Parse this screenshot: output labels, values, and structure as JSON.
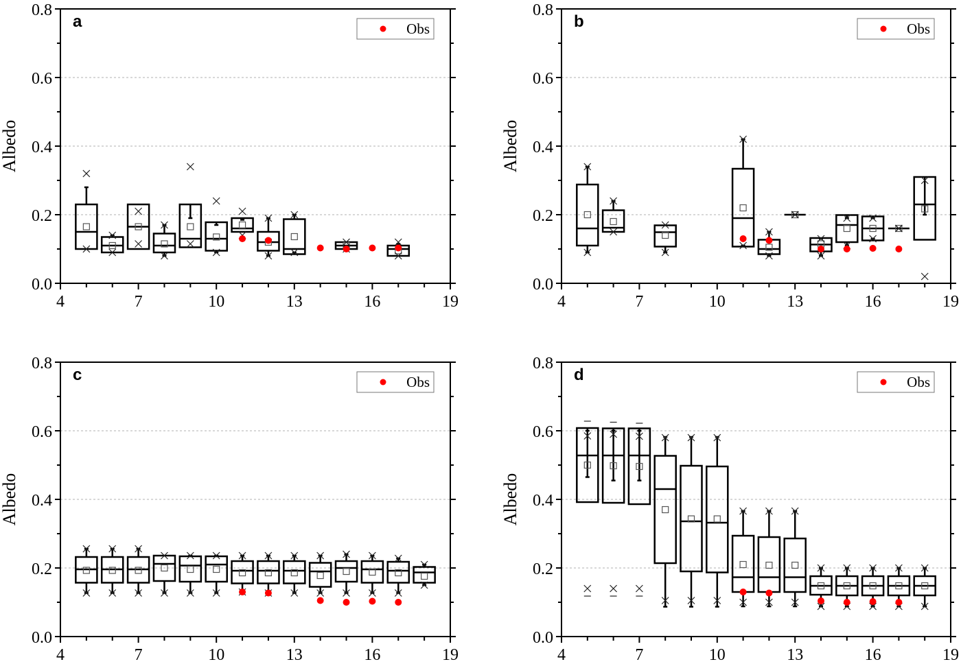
{
  "chart_data": [
    {
      "type": "box",
      "panel_label": "a",
      "ylabel": "Albedo",
      "xlabel": "",
      "xlim": [
        4,
        19
      ],
      "ylim": [
        0,
        0.8
      ],
      "xticks": [
        "4",
        "7",
        "10",
        "13",
        "16",
        "19"
      ],
      "yticks": [
        "0.0",
        "0.2",
        "0.4",
        "0.6",
        "0.8"
      ],
      "grid": "horizontal-dotted",
      "legend": {
        "entries": [
          "Obs"
        ],
        "position": "top-right"
      },
      "boxes": [
        {
          "x": 5,
          "q1": 0.1,
          "median": 0.15,
          "q3": 0.23,
          "mean": 0.165,
          "whisker_low": 0.1,
          "whisker_high": 0.28,
          "max": 0.32,
          "min": 0.1
        },
        {
          "x": 6,
          "q1": 0.09,
          "median": 0.11,
          "q3": 0.135,
          "mean": 0.11,
          "whisker_low": 0.09,
          "whisker_high": 0.14,
          "max": 0.14,
          "min": 0.09
        },
        {
          "x": 7,
          "q1": 0.1,
          "median": 0.165,
          "q3": 0.23,
          "mean": 0.165,
          "whisker_low": 0.1,
          "whisker_high": 0.23,
          "max": 0.21,
          "min": 0.115
        },
        {
          "x": 8,
          "q1": 0.09,
          "median": 0.11,
          "q3": 0.145,
          "mean": 0.115,
          "whisker_low": 0.08,
          "whisker_high": 0.17,
          "max": 0.17,
          "min": 0.08
        },
        {
          "x": 9,
          "q1": 0.105,
          "median": 0.13,
          "q3": 0.23,
          "mean": 0.165,
          "whisker_low": 0.105,
          "whisker_high": 0.19,
          "max": 0.34,
          "min": 0.115
        },
        {
          "x": 10,
          "q1": 0.095,
          "median": 0.13,
          "q3": 0.178,
          "mean": 0.135,
          "whisker_low": 0.09,
          "whisker_high": 0.17,
          "max": 0.24,
          "min": 0.09
        },
        {
          "x": 11,
          "q1": 0.15,
          "median": 0.16,
          "q3": 0.19,
          "mean": 0.17,
          "whisker_low": 0.15,
          "whisker_high": 0.185,
          "max": 0.21,
          "min": 0.14
        },
        {
          "x": 12,
          "q1": 0.095,
          "median": 0.12,
          "q3": 0.15,
          "mean": 0.12,
          "whisker_low": 0.08,
          "whisker_high": 0.19,
          "max": 0.19,
          "min": 0.08
        },
        {
          "x": 13,
          "q1": 0.085,
          "median": 0.1,
          "q3": 0.187,
          "mean": 0.136,
          "whisker_low": 0.09,
          "whisker_high": 0.2,
          "max": 0.2,
          "min": 0.09
        },
        {
          "x": 15,
          "q1": 0.1,
          "median": 0.11,
          "q3": 0.12,
          "mean": 0.11,
          "whisker_low": 0.1,
          "whisker_high": 0.12,
          "max": 0.12,
          "min": 0.1
        },
        {
          "x": 17,
          "q1": 0.08,
          "median": 0.1,
          "q3": 0.11,
          "mean": 0.095,
          "whisker_low": 0.08,
          "whisker_high": 0.115,
          "max": 0.12,
          "min": 0.08
        }
      ],
      "obs": [
        {
          "x": 11,
          "y": 0.13
        },
        {
          "x": 12,
          "y": 0.125
        },
        {
          "x": 14,
          "y": 0.103
        },
        {
          "x": 15,
          "y": 0.1
        },
        {
          "x": 16,
          "y": 0.103
        },
        {
          "x": 17,
          "y": 0.103
        }
      ]
    },
    {
      "type": "box",
      "panel_label": "b",
      "ylabel": "Albedo",
      "xlabel": "",
      "xlim": [
        4,
        19
      ],
      "ylim": [
        0,
        0.8
      ],
      "xticks": [
        "4",
        "7",
        "10",
        "13",
        "16",
        "19"
      ],
      "yticks": [
        "0.0",
        "0.2",
        "0.4",
        "0.6",
        "0.8"
      ],
      "grid": "horizontal-dotted",
      "legend": {
        "entries": [
          "Obs"
        ],
        "position": "top-right"
      },
      "boxes": [
        {
          "x": 5,
          "q1": 0.11,
          "median": 0.16,
          "q3": 0.288,
          "mean": 0.2,
          "whisker_low": 0.09,
          "whisker_high": 0.34,
          "max": 0.34,
          "min": 0.09
        },
        {
          "x": 6,
          "q1": 0.15,
          "median": 0.162,
          "q3": 0.213,
          "mean": 0.18,
          "whisker_low": 0.15,
          "whisker_high": 0.24,
          "max": 0.24,
          "min": 0.15
        },
        {
          "x": 8,
          "q1": 0.107,
          "median": 0.149,
          "q3": 0.169,
          "mean": 0.14,
          "whisker_low": 0.09,
          "whisker_high": 0.169,
          "max": 0.17,
          "min": 0.09
        },
        {
          "x": 11,
          "q1": 0.107,
          "median": 0.19,
          "q3": 0.334,
          "mean": 0.22,
          "whisker_low": 0.11,
          "whisker_high": 0.42,
          "max": 0.42,
          "min": 0.11
        },
        {
          "x": 12,
          "q1": 0.085,
          "median": 0.1,
          "q3": 0.127,
          "mean": 0.105,
          "whisker_low": 0.08,
          "whisker_high": 0.15,
          "max": 0.15,
          "min": 0.08
        },
        {
          "x": 13,
          "q1": 0.2,
          "median": 0.2,
          "q3": 0.2,
          "mean": 0.2,
          "whisker_low": 0.2,
          "whisker_high": 0.2,
          "max": 0.2,
          "min": 0.2
        },
        {
          "x": 14,
          "q1": 0.093,
          "median": 0.113,
          "q3": 0.132,
          "mean": 0.115,
          "whisker_low": 0.08,
          "whisker_high": 0.13,
          "max": 0.13,
          "min": 0.08
        },
        {
          "x": 15,
          "q1": 0.12,
          "median": 0.17,
          "q3": 0.199,
          "mean": 0.16,
          "whisker_low": 0.11,
          "whisker_high": 0.19,
          "max": 0.19,
          "min": 0.11
        },
        {
          "x": 16,
          "q1": 0.125,
          "median": 0.16,
          "q3": 0.195,
          "mean": 0.16,
          "whisker_low": 0.13,
          "whisker_high": 0.19,
          "max": 0.19,
          "min": 0.13
        },
        {
          "x": 17,
          "q1": 0.16,
          "median": 0.16,
          "q3": 0.16,
          "mean": 0.16,
          "whisker_low": 0.16,
          "whisker_high": 0.16,
          "max": 0.16,
          "min": 0.16
        },
        {
          "x": 18,
          "q1": 0.127,
          "median": 0.23,
          "q3": 0.31,
          "mean": 0.217,
          "whisker_low": 0.127,
          "whisker_high": 0.2,
          "max": 0.3,
          "min": 0.02
        }
      ],
      "obs": [
        {
          "x": 11,
          "y": 0.13
        },
        {
          "x": 12,
          "y": 0.125
        },
        {
          "x": 14,
          "y": 0.1
        },
        {
          "x": 15,
          "y": 0.1
        },
        {
          "x": 16,
          "y": 0.102
        },
        {
          "x": 17,
          "y": 0.1
        }
      ]
    },
    {
      "type": "box",
      "panel_label": "c",
      "ylabel": "Albedo",
      "xlabel": "",
      "xlim": [
        4,
        19
      ],
      "ylim": [
        0,
        0.8
      ],
      "xticks": [
        "4",
        "7",
        "10",
        "13",
        "16",
        "19"
      ],
      "yticks": [
        "0.0",
        "0.2",
        "0.4",
        "0.6",
        "0.8"
      ],
      "grid": "horizontal-dotted",
      "legend": {
        "entries": [
          "Obs"
        ],
        "position": "top-right"
      },
      "boxes": [
        {
          "x": 5,
          "q1": 0.157,
          "median": 0.196,
          "q3": 0.232,
          "mean": 0.193,
          "whisker_low": 0.127,
          "whisker_high": 0.256,
          "max": 0.256,
          "min": 0.127
        },
        {
          "x": 6,
          "q1": 0.157,
          "median": 0.196,
          "q3": 0.232,
          "mean": 0.193,
          "whisker_low": 0.127,
          "whisker_high": 0.256,
          "max": 0.256,
          "min": 0.127
        },
        {
          "x": 7,
          "q1": 0.157,
          "median": 0.196,
          "q3": 0.232,
          "mean": 0.193,
          "whisker_low": 0.127,
          "whisker_high": 0.256,
          "max": 0.256,
          "min": 0.127
        },
        {
          "x": 8,
          "q1": 0.162,
          "median": 0.212,
          "q3": 0.236,
          "mean": 0.2,
          "whisker_low": 0.127,
          "whisker_high": 0.236,
          "max": 0.236,
          "min": 0.127
        },
        {
          "x": 9,
          "q1": 0.16,
          "median": 0.207,
          "q3": 0.234,
          "mean": 0.196,
          "whisker_low": 0.127,
          "whisker_high": 0.236,
          "max": 0.236,
          "min": 0.127
        },
        {
          "x": 10,
          "q1": 0.16,
          "median": 0.21,
          "q3": 0.234,
          "mean": 0.196,
          "whisker_low": 0.127,
          "whisker_high": 0.236,
          "max": 0.236,
          "min": 0.127
        },
        {
          "x": 11,
          "q1": 0.155,
          "median": 0.192,
          "q3": 0.22,
          "mean": 0.186,
          "whisker_low": 0.13,
          "whisker_high": 0.236,
          "max": 0.236,
          "min": 0.13
        },
        {
          "x": 12,
          "q1": 0.155,
          "median": 0.192,
          "q3": 0.22,
          "mean": 0.186,
          "whisker_low": 0.127,
          "whisker_high": 0.236,
          "max": 0.236,
          "min": 0.127
        },
        {
          "x": 13,
          "q1": 0.155,
          "median": 0.192,
          "q3": 0.22,
          "mean": 0.186,
          "whisker_low": 0.127,
          "whisker_high": 0.236,
          "max": 0.236,
          "min": 0.127
        },
        {
          "x": 14,
          "q1": 0.145,
          "median": 0.19,
          "q3": 0.215,
          "mean": 0.178,
          "whisker_low": 0.127,
          "whisker_high": 0.236,
          "max": 0.236,
          "min": 0.127
        },
        {
          "x": 15,
          "q1": 0.16,
          "median": 0.2,
          "q3": 0.22,
          "mean": 0.19,
          "whisker_low": 0.127,
          "whisker_high": 0.24,
          "max": 0.24,
          "min": 0.127
        },
        {
          "x": 16,
          "q1": 0.157,
          "median": 0.196,
          "q3": 0.22,
          "mean": 0.188,
          "whisker_low": 0.127,
          "whisker_high": 0.236,
          "max": 0.236,
          "min": 0.127
        },
        {
          "x": 17,
          "q1": 0.157,
          "median": 0.192,
          "q3": 0.218,
          "mean": 0.186,
          "whisker_low": 0.127,
          "whisker_high": 0.228,
          "max": 0.228,
          "min": 0.127
        },
        {
          "x": 18,
          "q1": 0.157,
          "median": 0.187,
          "q3": 0.203,
          "mean": 0.176,
          "whisker_low": 0.15,
          "whisker_high": 0.21,
          "max": 0.21,
          "min": 0.15
        }
      ],
      "obs": [
        {
          "x": 11,
          "y": 0.13
        },
        {
          "x": 12,
          "y": 0.127
        },
        {
          "x": 14,
          "y": 0.105
        },
        {
          "x": 15,
          "y": 0.1
        },
        {
          "x": 16,
          "y": 0.103
        },
        {
          "x": 17,
          "y": 0.1
        }
      ]
    },
    {
      "type": "box",
      "panel_label": "d",
      "ylabel": "Albedo",
      "xlabel": "",
      "xlim": [
        4,
        19
      ],
      "ylim": [
        0,
        0.8
      ],
      "xticks": [
        "4",
        "7",
        "10",
        "13",
        "16",
        "19"
      ],
      "yticks": [
        "0.0",
        "0.2",
        "0.4",
        "0.6",
        "0.8"
      ],
      "grid": "horizontal-dotted",
      "legend": {
        "entries": [
          "Obs"
        ],
        "position": "top-right"
      },
      "boxes": [
        {
          "x": 5,
          "q1": 0.392,
          "median": 0.528,
          "q3": 0.608,
          "mean": 0.5,
          "whisker_low": 0.392,
          "whisker_high": 0.465,
          "whisker_top": 0.6,
          "max": 0.585,
          "min": 0.14,
          "max_dash": 0.628,
          "min_dash": 0.118
        },
        {
          "x": 6,
          "q1": 0.39,
          "median": 0.528,
          "q3": 0.607,
          "mean": 0.498,
          "whisker_low": 0.39,
          "whisker_high": 0.455,
          "whisker_top": 0.6,
          "max": 0.59,
          "min": 0.14,
          "max_dash": 0.625,
          "min_dash": 0.118
        },
        {
          "x": 7,
          "q1": 0.386,
          "median": 0.528,
          "q3": 0.607,
          "mean": 0.496,
          "whisker_low": 0.386,
          "whisker_high": 0.455,
          "whisker_top": 0.6,
          "max": 0.584,
          "min": 0.14,
          "max_dash": 0.622,
          "min_dash": 0.118
        },
        {
          "x": 8,
          "q1": 0.214,
          "median": 0.43,
          "q3": 0.527,
          "mean": 0.37,
          "whisker_low": 0.087,
          "whisker_high": 0.582,
          "max": 0.58,
          "min": 0.105
        },
        {
          "x": 9,
          "q1": 0.19,
          "median": 0.336,
          "q3": 0.498,
          "mean": 0.343,
          "whisker_low": 0.087,
          "whisker_high": 0.582,
          "max": 0.58,
          "min": 0.105
        },
        {
          "x": 10,
          "q1": 0.187,
          "median": 0.332,
          "q3": 0.496,
          "mean": 0.343,
          "whisker_low": 0.087,
          "whisker_high": 0.582,
          "max": 0.58,
          "min": 0.105
        },
        {
          "x": 11,
          "q1": 0.13,
          "median": 0.173,
          "q3": 0.294,
          "mean": 0.21,
          "whisker_low": 0.088,
          "whisker_high": 0.366,
          "max": 0.366,
          "min": 0.1
        },
        {
          "x": 12,
          "q1": 0.13,
          "median": 0.173,
          "q3": 0.29,
          "mean": 0.208,
          "whisker_low": 0.088,
          "whisker_high": 0.366,
          "max": 0.366,
          "min": 0.1
        },
        {
          "x": 13,
          "q1": 0.13,
          "median": 0.173,
          "q3": 0.286,
          "mean": 0.208,
          "whisker_low": 0.088,
          "whisker_high": 0.366,
          "max": 0.366,
          "min": 0.1
        },
        {
          "x": 14,
          "q1": 0.122,
          "median": 0.148,
          "q3": 0.176,
          "mean": 0.148,
          "whisker_low": 0.088,
          "whisker_high": 0.2,
          "max": 0.2,
          "min": 0.088
        },
        {
          "x": 15,
          "q1": 0.12,
          "median": 0.148,
          "q3": 0.176,
          "mean": 0.148,
          "whisker_low": 0.088,
          "whisker_high": 0.2,
          "max": 0.2,
          "min": 0.088
        },
        {
          "x": 16,
          "q1": 0.12,
          "median": 0.148,
          "q3": 0.176,
          "mean": 0.148,
          "whisker_low": 0.088,
          "whisker_high": 0.2,
          "max": 0.2,
          "min": 0.088
        },
        {
          "x": 17,
          "q1": 0.12,
          "median": 0.148,
          "q3": 0.176,
          "mean": 0.148,
          "whisker_low": 0.088,
          "whisker_high": 0.2,
          "max": 0.2,
          "min": 0.088
        },
        {
          "x": 18,
          "q1": 0.12,
          "median": 0.148,
          "q3": 0.176,
          "mean": 0.148,
          "whisker_low": 0.088,
          "whisker_high": 0.2,
          "max": 0.2,
          "min": 0.088
        }
      ],
      "obs": [
        {
          "x": 11,
          "y": 0.13
        },
        {
          "x": 12,
          "y": 0.127
        },
        {
          "x": 14,
          "y": 0.104
        },
        {
          "x": 15,
          "y": 0.1
        },
        {
          "x": 16,
          "y": 0.102
        },
        {
          "x": 17,
          "y": 0.1
        }
      ]
    }
  ],
  "colors": {
    "obs": "#ff0000",
    "box": "#000000",
    "grid": "#b0b0b0",
    "mean_marker": "#555555",
    "legend_border": "#777777"
  }
}
